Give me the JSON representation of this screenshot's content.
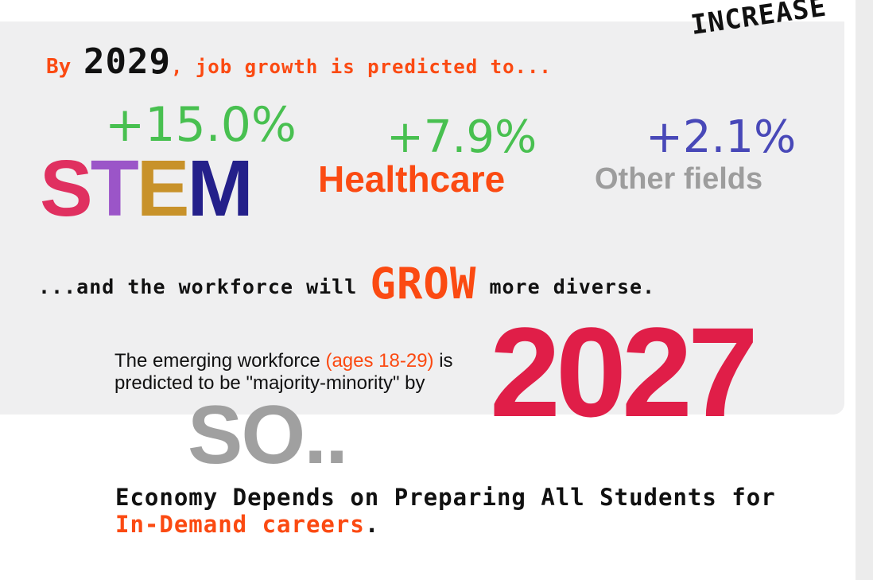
{
  "heading": {
    "by": "By",
    "year": "2029",
    "rest": ", job growth is predicted to...",
    "increase": "INCREASE"
  },
  "stats": {
    "stem": {
      "pct": "+15.0%",
      "letters": [
        "S",
        "T",
        "E",
        "M"
      ]
    },
    "healthcare": {
      "pct": "+7.9%",
      "label": "Healthcare"
    },
    "other": {
      "pct": "+2.1%",
      "label": "Other fields"
    }
  },
  "grow_line": {
    "before": "...and the workforce will ",
    "grow": "GROW",
    "after": " more diverse."
  },
  "workforce": {
    "part1": "The emerging workforce ",
    "ages": "(ages 18-29)",
    "part2": "  is",
    "line2": "predicted to be \"majority-minority\" by",
    "year": "2027"
  },
  "so": "SO..",
  "economy": {
    "line1": "Economy Depends on Preparing All Students for",
    "highlight": "In-Demand careers",
    "end": "."
  },
  "colors": {
    "orange": "#fb4a12",
    "green": "#48c050",
    "purple_blue": "#4848b8",
    "grey": "#9d9d9d",
    "red": "#e01e48",
    "stem_s": "#e03060",
    "stem_t": "#9b55c8",
    "stem_e": "#c8922a",
    "stem_m": "#24208a"
  }
}
